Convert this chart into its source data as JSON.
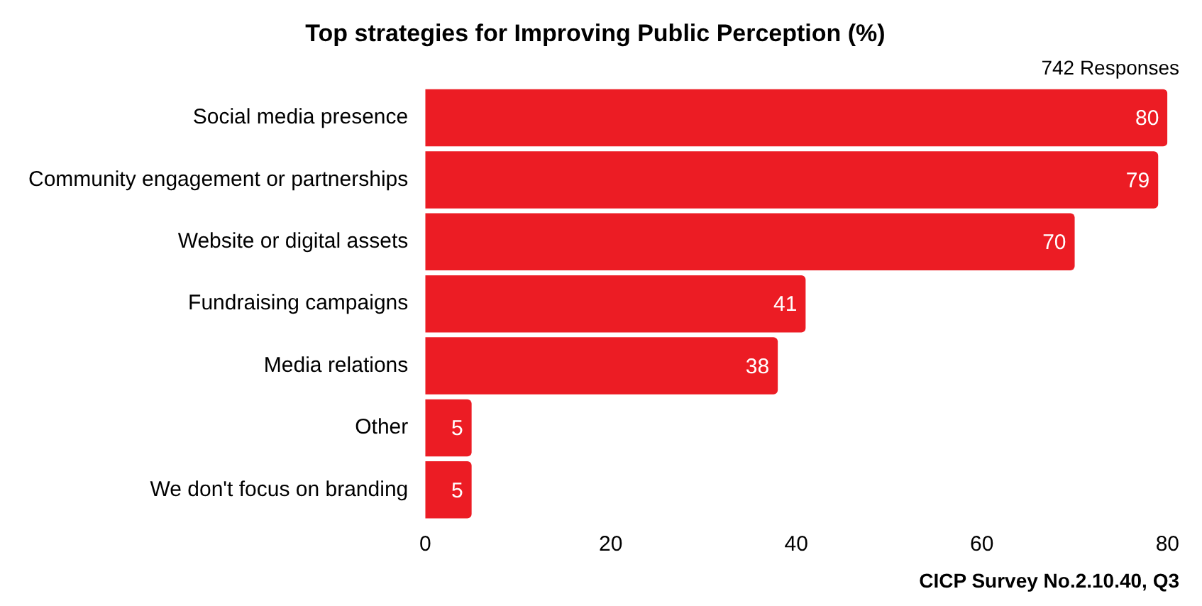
{
  "chart_data": {
    "type": "bar",
    "orientation": "horizontal",
    "title": "Top strategies for Improving Public Perception (%)",
    "subtitle": "742 Responses",
    "annotations": [
      "CICP Survey No.2.10.40, Q3"
    ],
    "categories": [
      "Social media presence",
      "Community engagement or partnerships",
      "Website or digital assets",
      "Fundraising campaigns",
      "Media relations",
      "Other",
      "We don't focus on branding"
    ],
    "values": [
      80,
      79,
      70,
      41,
      38,
      5,
      5
    ],
    "color": "#ec1c24",
    "data_labels": true,
    "xlim": [
      0,
      80
    ],
    "xticks": [
      0,
      20,
      40,
      60,
      80
    ],
    "grid": false,
    "legend": false
  }
}
